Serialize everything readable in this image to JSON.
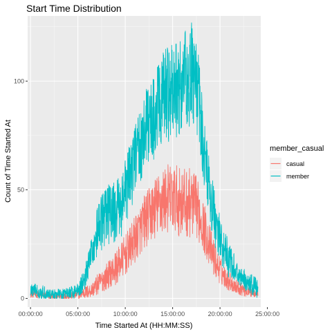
{
  "chart_data": {
    "type": "line",
    "title": "Start Time Distribution",
    "xlabel": "Time Started At (HH:MM:SS)",
    "ylabel": "Count of Time Started At",
    "x_ticks": [
      {
        "value": 0,
        "label": "00:00:00"
      },
      {
        "value": 5,
        "label": "05:00:00"
      },
      {
        "value": 10,
        "label": "10:00:00"
      },
      {
        "value": 15,
        "label": "15:00:00"
      },
      {
        "value": 20,
        "label": "20:00:00"
      },
      {
        "value": 25,
        "label": "25:00:00"
      }
    ],
    "y_ticks": [
      {
        "value": 0,
        "label": "0"
      },
      {
        "value": 50,
        "label": "50"
      },
      {
        "value": 100,
        "label": "100"
      }
    ],
    "xlim": [
      -0.3,
      24.3
    ],
    "ylim": [
      -4,
      130
    ],
    "grid": true,
    "legend": {
      "title": "member_casual",
      "placement": "right"
    },
    "series": [
      {
        "name": "casual",
        "color": "#F8766D",
        "x": [
          0,
          0.5,
          1,
          1.5,
          2,
          2.5,
          3,
          3.5,
          4,
          4.5,
          5,
          5.5,
          6,
          6.5,
          7,
          7.5,
          8,
          8.5,
          9,
          9.5,
          10,
          10.5,
          11,
          11.5,
          12,
          12.5,
          13,
          13.5,
          14,
          14.5,
          15,
          15.5,
          16,
          16.5,
          17,
          17.5,
          18,
          18.5,
          19,
          19.5,
          20,
          20.5,
          21,
          21.5,
          22,
          22.5,
          23,
          23.5,
          24
        ],
        "y": [
          2,
          2,
          1.5,
          1.5,
          1,
          1,
          1,
          1,
          1,
          1.5,
          2,
          2.5,
          3,
          4,
          6,
          8,
          10,
          12,
          14,
          17,
          20,
          23,
          27,
          31,
          35,
          38,
          41,
          43,
          45,
          46,
          46,
          45,
          44,
          44,
          44,
          42,
          37,
          30,
          23,
          17,
          13,
          10,
          8,
          6,
          5,
          4,
          3,
          3,
          2.5
        ],
        "amp": [
          1,
          1,
          1,
          1,
          1,
          1,
          1,
          1,
          1,
          1,
          1.5,
          1.5,
          2,
          2,
          3,
          3,
          4,
          4,
          5,
          5,
          6,
          6,
          7,
          7,
          8,
          8,
          9,
          9,
          10,
          10,
          10,
          10,
          10,
          10,
          10,
          9,
          8,
          7,
          6,
          5,
          4,
          3,
          3,
          2,
          2,
          2,
          1.5,
          1.5,
          1
        ]
      },
      {
        "name": "member",
        "color": "#00BFC4",
        "x": [
          0,
          0.5,
          1,
          1.5,
          2,
          2.5,
          3,
          3.5,
          4,
          4.5,
          5,
          5.5,
          6,
          6.5,
          7,
          7.5,
          8,
          8.5,
          9,
          9.5,
          10,
          10.5,
          11,
          11.5,
          12,
          12.5,
          13,
          13.5,
          14,
          14.5,
          15,
          15.5,
          16,
          16.5,
          17,
          17.5,
          18,
          18.5,
          19,
          19.5,
          20,
          20.5,
          21,
          21.5,
          22,
          22.5,
          23,
          23.5,
          24
        ],
        "y": [
          4,
          3.5,
          3,
          2.5,
          2,
          2,
          2,
          2,
          2.5,
          3,
          4,
          7,
          13,
          22,
          30,
          35,
          38,
          39,
          40,
          42,
          48,
          56,
          64,
          70,
          76,
          80,
          84,
          88,
          92,
          94,
          95,
          96,
          98,
          102,
          104,
          98,
          82,
          62,
          46,
          36,
          28,
          22,
          17,
          14,
          11,
          9,
          7,
          6,
          5
        ],
        "amp": [
          2,
          2,
          2,
          2,
          1.5,
          1.5,
          1.5,
          1.5,
          1.5,
          2,
          2,
          3,
          4,
          5,
          7,
          8,
          9,
          9,
          9,
          9,
          10,
          10,
          11,
          11,
          12,
          12,
          13,
          13,
          14,
          14,
          14,
          14,
          14,
          15,
          15,
          14,
          12,
          10,
          9,
          8,
          7,
          6,
          5,
          4,
          4,
          3,
          3,
          3,
          3
        ]
      }
    ]
  }
}
